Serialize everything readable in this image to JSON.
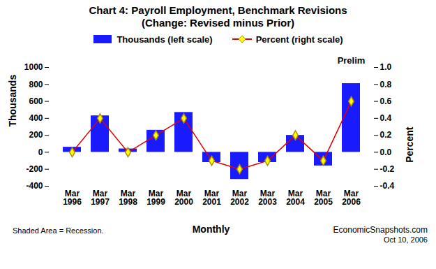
{
  "chart_data": {
    "type": "bar",
    "title": "Chart 4: Payroll Employment, Benchmark Revisions",
    "subtitle": "(Change: Revised minus Prior)",
    "x_label": "Monthly",
    "y_label": "Thousands",
    "y2_label": "Percent",
    "categories": [
      "Mar 1996",
      "Mar 1997",
      "Mar 1998",
      "Mar 1999",
      "Mar 2000",
      "Mar 2001",
      "Mar 2002",
      "Mar 2003",
      "Mar 2004",
      "Mar 2005",
      "Mar 2006"
    ],
    "series": [
      {
        "name": "Thousands (left scale)",
        "type": "bar",
        "color": "#1a1aff",
        "values": [
          60,
          430,
          40,
          260,
          470,
          -120,
          -320,
          -120,
          200,
          -160,
          810
        ]
      },
      {
        "name": "Percent (right scale)",
        "type": "line",
        "axis": "y2",
        "color": "#e00000",
        "marker": "diamond",
        "values": [
          0.0,
          0.4,
          0.0,
          0.2,
          0.4,
          -0.1,
          -0.2,
          -0.1,
          0.2,
          -0.1,
          0.6
        ]
      }
    ],
    "ylim": [
      -400,
      1000
    ],
    "yticks": [
      -400,
      -200,
      0,
      200,
      400,
      600,
      800,
      1000
    ],
    "y2lim": [
      -0.4,
      1.0
    ],
    "y2ticks": [
      -0.4,
      -0.2,
      {
        "value": 0,
        "label": "0.0"
      },
      0.2,
      0.4,
      0.6,
      0.8,
      {
        "value": 1,
        "label": "1.0"
      }
    ],
    "legend": "top",
    "annotations": [
      {
        "text": "Prelim",
        "category": "Mar 2006"
      }
    ],
    "notes": [
      "Shaded Area = Recession."
    ],
    "source": "EconomicSnapshots.com",
    "date": "Oct 10, 2006"
  }
}
